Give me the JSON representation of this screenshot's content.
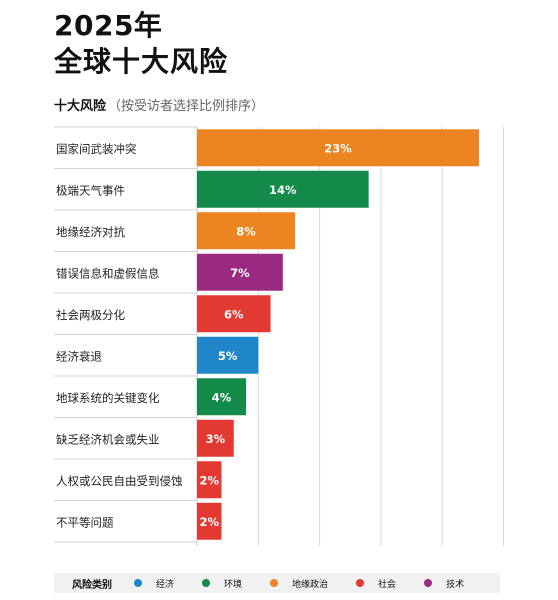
{
  "title_line1": "2025年",
  "title_line2": "全球十大风险",
  "subtitle_bold": "十大风险",
  "subtitle_note": "（按受访者选择比例排序）",
  "legend": {
    "title": "风险类别",
    "items": [
      {
        "label": "经济",
        "color": "#1f87c9"
      },
      {
        "label": "环境",
        "color": "#138a4a"
      },
      {
        "label": "地缘政治",
        "color": "#ec8422"
      },
      {
        "label": "社会",
        "color": "#e23a33"
      },
      {
        "label": "技术",
        "color": "#9a2a80"
      }
    ]
  },
  "chart_data": {
    "type": "bar",
    "orientation": "horizontal",
    "categories": [
      "国家间武装冲突",
      "极端天气事件",
      "地缘经济对抗",
      "错误信息和虚假信息",
      "社会两极分化",
      "经济衰退",
      "地球系统的关键变化",
      "缺乏经济机会或失业",
      "人权或公民自由受到侵蚀",
      "不平等问题"
    ],
    "values": [
      23,
      14,
      8,
      7,
      6,
      5,
      4,
      3,
      2,
      2
    ],
    "value_labels": [
      "23%",
      "14%",
      "8%",
      "7%",
      "6%",
      "5%",
      "4%",
      "3%",
      "2%",
      "2%"
    ],
    "risk_category": [
      "地缘政治",
      "环境",
      "地缘政治",
      "技术",
      "社会",
      "经济",
      "环境",
      "社会",
      "社会",
      "社会"
    ],
    "xlim": [
      0,
      25
    ],
    "grid": true
  }
}
